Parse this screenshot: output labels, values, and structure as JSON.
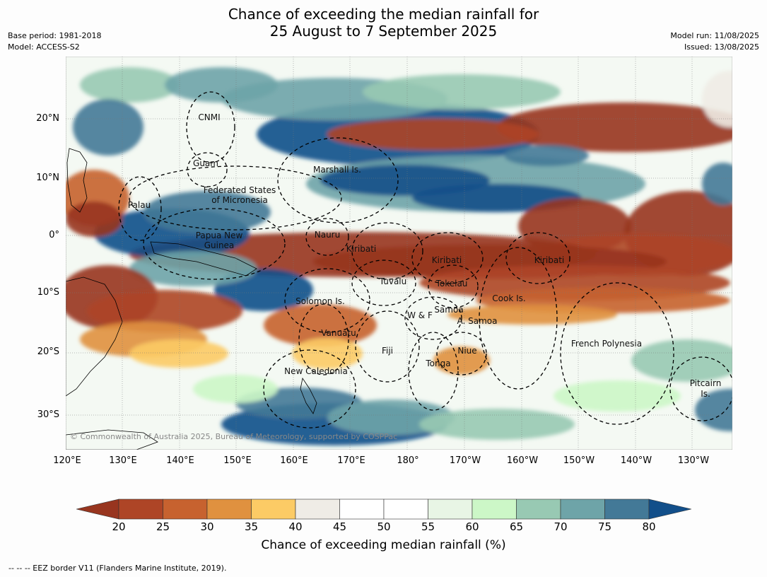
{
  "title": {
    "line1": "Chance of exceeding the median rainfall for",
    "line2": "25 August to 7 September 2025"
  },
  "meta": {
    "base_period": "Base period: 1981-2018",
    "model": "Model: ACCESS-S2",
    "model_run": "Model run: 11/08/2025",
    "issued": "Issued: 13/08/2025"
  },
  "map": {
    "lat_labels": [
      "20°N",
      "10°N",
      "0°",
      "10°S",
      "20°S",
      "30°S"
    ],
    "lon_labels": [
      "120°E",
      "130°E",
      "140°E",
      "150°E",
      "160°E",
      "170°E",
      "180°",
      "170°W",
      "160°W",
      "150°W",
      "140°W",
      "130°W"
    ],
    "regions": [
      {
        "name": "CNMI"
      },
      {
        "name": "Guam"
      },
      {
        "name": "Marshall Is."
      },
      {
        "name": "Federated States"
      },
      {
        "name": "of Micronesia"
      },
      {
        "name": "Palau"
      },
      {
        "name": "Papua New"
      },
      {
        "name": "Guinea"
      },
      {
        "name": "Nauru"
      },
      {
        "name": "Kiribati"
      },
      {
        "name": "Kiribati"
      },
      {
        "name": "Kiribati"
      },
      {
        "name": "Tuvalu"
      },
      {
        "name": "Tokelau"
      },
      {
        "name": "Cook Is."
      },
      {
        "name": "Solomon Is."
      },
      {
        "name": "Samoa"
      },
      {
        "name": "W & F"
      },
      {
        "name": "A. Samoa"
      },
      {
        "name": "Vanuatu"
      },
      {
        "name": "Fiji"
      },
      {
        "name": "Niue"
      },
      {
        "name": "French Polynesia"
      },
      {
        "name": "Tonga"
      },
      {
        "name": "New Caledonia"
      },
      {
        "name": "Pitcairn"
      },
      {
        "name": "Is."
      }
    ],
    "copyright": "© Commonwealth of Australia 2025, Bureau of Meteorology, supported by COSPPac"
  },
  "colorbar": {
    "ticks": [
      "20",
      "25",
      "30",
      "35",
      "40",
      "45",
      "50",
      "55",
      "60",
      "65",
      "70",
      "75",
      "80"
    ],
    "colors": [
      "#98351f",
      "#ae4526",
      "#c7622f",
      "#e0913f",
      "#fccb65",
      "#efece6",
      "#ffffff",
      "#ffffff",
      "#e8f5e5",
      "#ccf7c7",
      "#98c9b3",
      "#6ea4a8",
      "#437997",
      "#124f8a"
    ],
    "label": "Chance of exceeding median rainfall (%)"
  },
  "footer": "--  --  -- EEZ border V11 (Flanders Marine Institute, 2019)."
}
